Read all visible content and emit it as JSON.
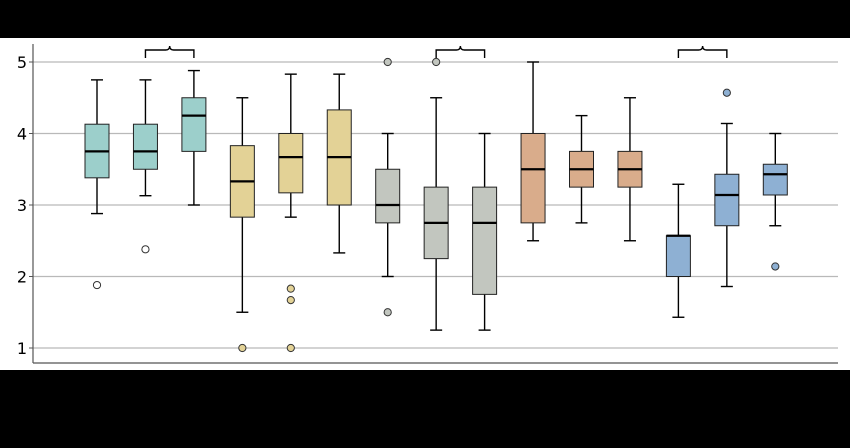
{
  "chart_data": {
    "type": "box",
    "title": "",
    "xlabel": "",
    "ylabel": "",
    "ylim": [
      0.8,
      5.3
    ],
    "yticks": [
      1,
      2,
      3,
      4,
      5
    ],
    "grid": "horizontal",
    "legend": "none",
    "colors": {
      "teal": "#9ccfcb",
      "gold": "#e3d296",
      "gray": "#c2c6bf",
      "tan": "#d9ac8b",
      "blue": "#8eb0d3",
      "grid": "#b9b9b9",
      "axis": "#555555"
    },
    "boxes": [
      {
        "color": "teal",
        "min": 2.88,
        "q1": 3.38,
        "median": 3.75,
        "q3": 4.13,
        "max": 4.75,
        "outliers": [
          1.88
        ],
        "outlier_style": "open"
      },
      {
        "color": "teal",
        "min": 3.13,
        "q1": 3.5,
        "median": 3.75,
        "q3": 4.13,
        "max": 4.75,
        "outliers": [
          2.38
        ],
        "outlier_style": "open"
      },
      {
        "color": "teal",
        "min": 3.0,
        "q1": 3.75,
        "median": 4.25,
        "q3": 4.5,
        "max": 4.88,
        "outliers": [],
        "outlier_style": "open"
      },
      {
        "color": "gold",
        "min": 1.5,
        "q1": 2.83,
        "median": 3.33,
        "q3": 3.83,
        "max": 4.5,
        "outliers": [
          1.0
        ],
        "outlier_style": "filled"
      },
      {
        "color": "gold",
        "min": 2.83,
        "q1": 3.17,
        "median": 3.67,
        "q3": 4.0,
        "max": 4.83,
        "outliers": [
          1.83,
          1.67,
          1.0
        ],
        "outlier_style": "filled"
      },
      {
        "color": "gold",
        "min": 2.33,
        "q1": 3.0,
        "median": 3.67,
        "q3": 4.33,
        "max": 4.83,
        "outliers": [],
        "outlier_style": "filled"
      },
      {
        "color": "gray",
        "min": 2.0,
        "q1": 2.75,
        "median": 3.0,
        "q3": 3.5,
        "max": 4.0,
        "outliers": [
          5.0,
          1.5
        ],
        "outlier_style": "filled"
      },
      {
        "color": "gray",
        "min": 1.25,
        "q1": 2.25,
        "median": 2.75,
        "q3": 3.25,
        "max": 4.5,
        "outliers": [
          5.0
        ],
        "outlier_style": "filled"
      },
      {
        "color": "gray",
        "min": 1.25,
        "q1": 1.75,
        "median": 2.75,
        "q3": 3.25,
        "max": 4.0,
        "outliers": [],
        "outlier_style": "filled"
      },
      {
        "color": "tan",
        "min": 2.5,
        "q1": 2.75,
        "median": 3.5,
        "q3": 4.0,
        "max": 5.0,
        "outliers": [],
        "outlier_style": "filled"
      },
      {
        "color": "tan",
        "min": 2.75,
        "q1": 3.25,
        "median": 3.5,
        "q3": 3.75,
        "max": 4.25,
        "outliers": [],
        "outlier_style": "filled"
      },
      {
        "color": "tan",
        "min": 2.5,
        "q1": 3.25,
        "median": 3.5,
        "q3": 3.75,
        "max": 4.5,
        "outliers": [],
        "outlier_style": "filled"
      },
      {
        "color": "blue",
        "min": 1.43,
        "q1": 2.0,
        "median": 2.57,
        "q3": 2.57,
        "max": 3.29,
        "outliers": [],
        "outlier_style": "filled"
      },
      {
        "color": "blue",
        "min": 1.86,
        "q1": 2.71,
        "median": 3.14,
        "q3": 3.43,
        "max": 4.14,
        "outliers": [
          4.57
        ],
        "outlier_style": "filled"
      },
      {
        "color": "blue",
        "min": 2.71,
        "q1": 3.14,
        "median": 3.43,
        "q3": 3.57,
        "max": 4.0,
        "outliers": [
          2.14
        ],
        "outlier_style": "filled"
      }
    ],
    "brackets": [
      {
        "from": 1,
        "to": 2
      },
      {
        "from": 7,
        "to": 8
      },
      {
        "from": 12,
        "to": 13
      }
    ]
  }
}
